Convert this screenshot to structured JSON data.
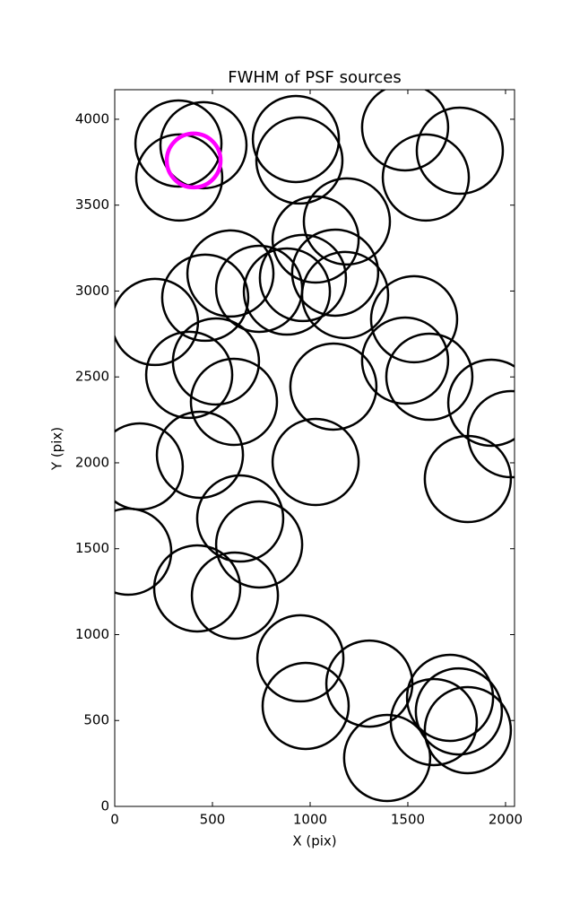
{
  "chart_data": {
    "type": "scatter",
    "title": "FWHM of PSF sources",
    "x_label": "X (pix)",
    "y_label": "Y (pix)",
    "xlim": [
      0,
      2046
    ],
    "ylim": [
      0,
      4172
    ],
    "xticks": [
      0,
      500,
      1000,
      1500,
      2000
    ],
    "yticks": [
      0,
      500,
      1000,
      1500,
      2000,
      2500,
      3000,
      3500,
      4000
    ],
    "series": [
      {
        "color": "#000000",
        "x": [
          326,
          454,
          330,
          927,
          945,
          1486,
          1766,
          1592,
          1188,
          1028,
          592,
          463,
          206,
          739,
          881,
          963,
          1128,
          1179,
          1532,
          1486,
          1610,
          518,
          381,
          610,
          1119,
          1927,
          2028,
          1807,
          128,
          436,
          1028,
          642,
          739,
          69,
          422,
          615,
          950,
          977,
          1303,
          1394,
          1633,
          1716,
          1761,
          1807
        ],
        "y": [
          3859,
          3849,
          3661,
          3885,
          3760,
          3953,
          3817,
          3661,
          3405,
          3300,
          3102,
          2961,
          2820,
          3013,
          2997,
          3076,
          3107,
          2977,
          2836,
          2595,
          2501,
          2590,
          2512,
          2355,
          2444,
          2350,
          2167,
          1906,
          1979,
          2047,
          2005,
          1676,
          1525,
          1483,
          1269,
          1227,
          862,
          585,
          715,
          282,
          491,
          632,
          553,
          444
        ]
      },
      {
        "color": "#ff00ff",
        "x": [
          404
        ],
        "y": [
          3760
        ]
      }
    ]
  }
}
